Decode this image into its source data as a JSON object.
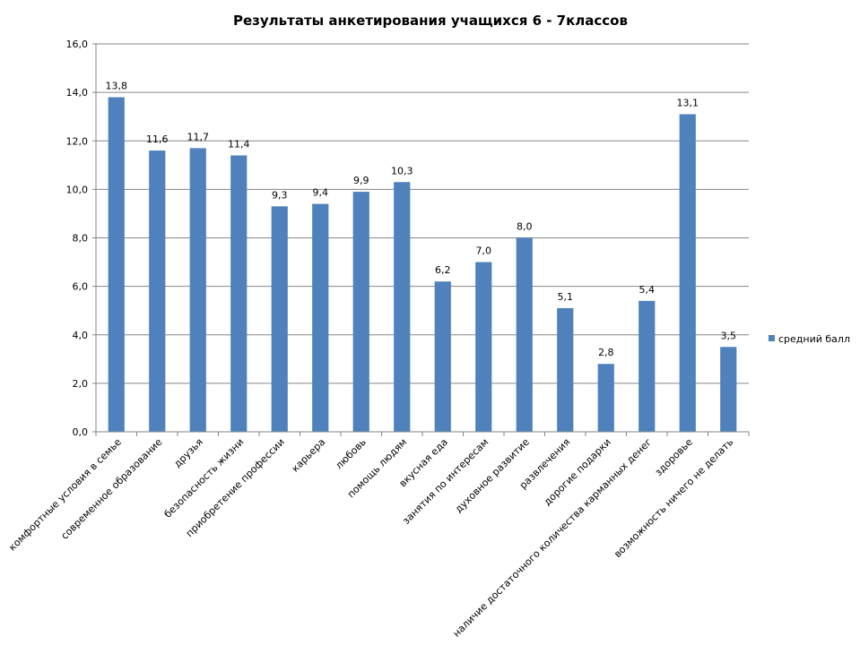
{
  "chart_data": {
    "type": "bar",
    "title": "Результаты анкетирования учащихся 6 - 7классов",
    "xlabel": "",
    "ylabel": "",
    "ylim": [
      0,
      16
    ],
    "yticks": [
      "0,0",
      "2,0",
      "4,0",
      "6,0",
      "8,0",
      "10,0",
      "12,0",
      "14,0",
      "16,0"
    ],
    "grid": true,
    "legend_position": "right",
    "categories": [
      "комфортные условия в семье",
      "современное образование",
      "друзья",
      "безопасность жизни",
      "приобретение профессии",
      "карьера",
      "любовь",
      "помощь людям",
      "вкусная еда",
      "занятия по интересам",
      "духовное развитие",
      "развлечения",
      "дорогие подарки",
      "наличие достаточного количества карманных денег",
      "здоровье",
      "возможность ничего не делать"
    ],
    "series": [
      {
        "name": "средний балл",
        "color": "#4F81BD",
        "values": [
          13.8,
          11.6,
          11.7,
          11.4,
          9.3,
          9.4,
          9.9,
          10.3,
          6.2,
          7.0,
          8.0,
          5.1,
          2.8,
          5.4,
          13.1,
          3.5
        ],
        "labels": [
          "13,8",
          "11,6",
          "11,7",
          "11,4",
          "9,3",
          "9,4",
          "9,9",
          "10,3",
          "6,2",
          "7,0",
          "8,0",
          "5,1",
          "2,8",
          "5,4",
          "13,1",
          "3,5"
        ]
      }
    ]
  }
}
